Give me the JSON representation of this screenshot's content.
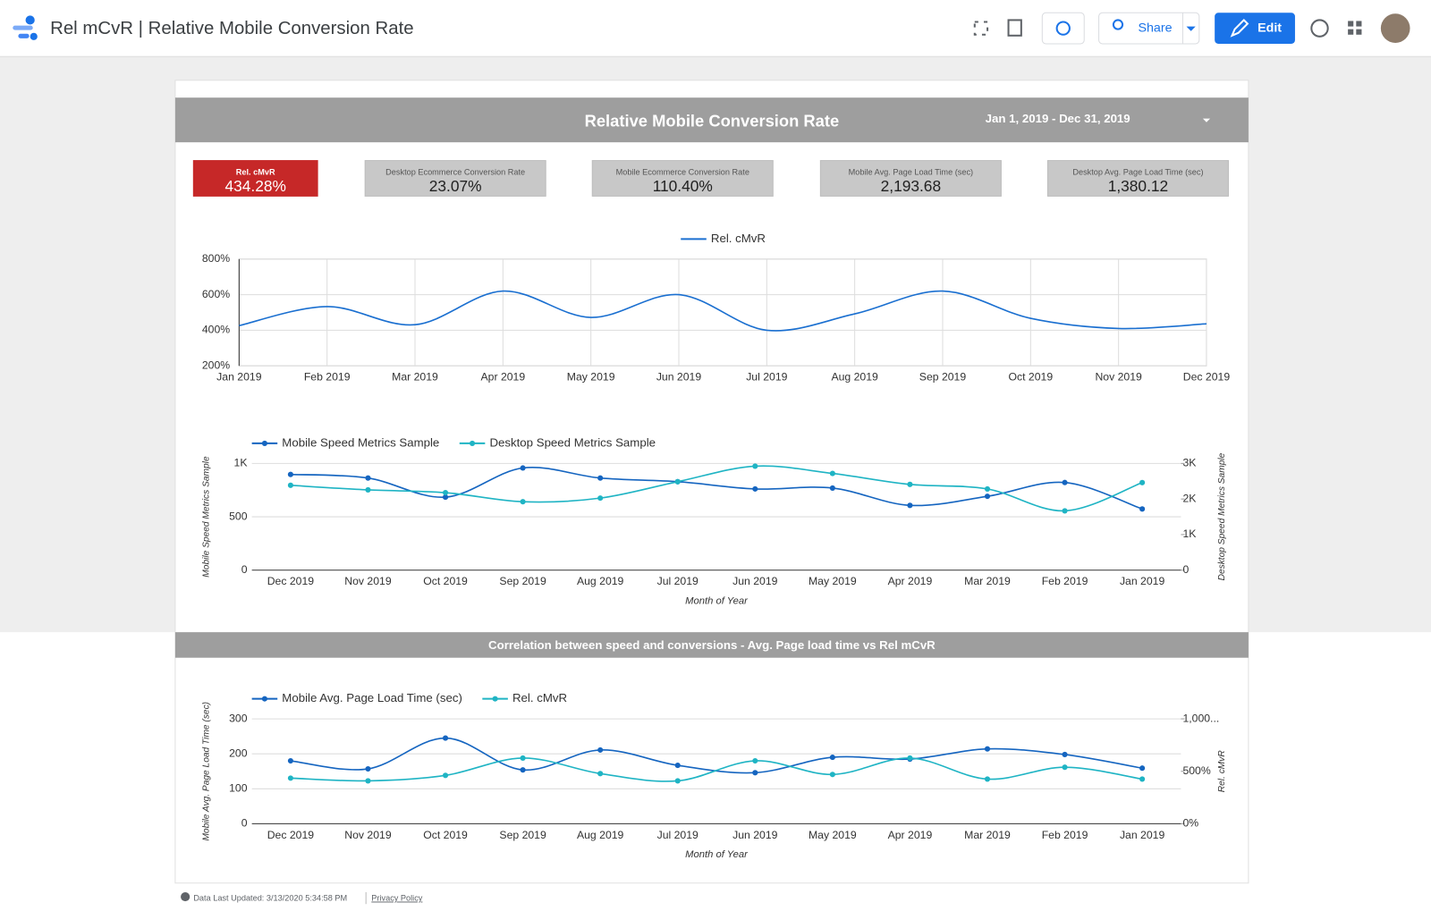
{
  "header": {
    "title": "Rel mCvR | Relative Mobile Conversion Rate",
    "share": "Share",
    "edit": "Edit"
  },
  "report": {
    "title": "Relative Mobile Conversion Rate",
    "date_range": "Jan 1, 2019 - Dec 31, 2019"
  },
  "scorecards": [
    {
      "label": "Rel. cMvR",
      "value": "434.28%"
    },
    {
      "label": "Desktop Ecommerce Conversion Rate",
      "value": "23.07%"
    },
    {
      "label": "Mobile Ecommerce Conversion Rate",
      "value": "110.40%"
    },
    {
      "label": "Mobile Avg. Page Load Time (sec)",
      "value": "2,193.68"
    },
    {
      "label": "Desktop Avg. Page Load Time (sec)",
      "value": "1,380.12"
    }
  ],
  "section_title": "Correlation between speed and conversions - Avg. Page load time vs Rel mCvR",
  "footer": {
    "updated": "Data Last Updated: 3/13/2020 5:34:58 PM",
    "privacy": "Privacy Policy"
  },
  "chart_data": [
    {
      "type": "line",
      "markers": false,
      "grid": true,
      "xgrid": true,
      "categories": [
        "Jan 2019",
        "Feb 2019",
        "Mar 2019",
        "Apr 2019",
        "May 2019",
        "Jun 2019",
        "Jul 2019",
        "Aug 2019",
        "Sep 2019",
        "Oct 2019",
        "Nov 2019",
        "Dec 2019"
      ],
      "series": [
        {
          "name": "Rel. cMvR",
          "color": "#1a6fd0",
          "values": [
            426,
            533,
            431,
            620,
            472,
            600,
            400,
            492,
            620,
            467,
            410,
            436
          ]
        }
      ],
      "ylim": [
        200,
        800
      ],
      "yticks": [
        {
          "value": 200,
          "label": "200%"
        },
        {
          "value": 400,
          "label": "400%"
        },
        {
          "value": 600,
          "label": "600%"
        },
        {
          "value": 800,
          "label": "800%"
        }
      ]
    },
    {
      "type": "line",
      "markers": true,
      "grid": true,
      "x_label": "Month of Year",
      "y_label": "Mobile Speed Metrics Sample",
      "y2_label": "Desktop Speed Metrics Sample",
      "categories": [
        "Dec 2019",
        "Nov 2019",
        "Oct 2019",
        "Sep 2019",
        "Aug 2019",
        "Jul 2019",
        "Jun 2019",
        "May 2019",
        "Apr 2019",
        "Mar 2019",
        "Feb 2019",
        "Jan 2019"
      ],
      "series": [
        {
          "name": "Mobile Speed Metrics Sample",
          "color": "#1565c0",
          "values": [
            897,
            863,
            684,
            957,
            863,
            829,
            761,
            769,
            607,
            692,
            821,
            573
          ]
        },
        {
          "name": "Desktop Speed Metrics Sample",
          "color": "#1fb4c4",
          "axis": "y2",
          "values": [
            2385,
            2256,
            2179,
            1923,
            2026,
            2487,
            2923,
            2718,
            2410,
            2282,
            1667,
            2462
          ]
        }
      ],
      "ylim": [
        0,
        1000
      ],
      "yticks": [
        0,
        500,
        {
          "value": 1000,
          "label": "1K"
        }
      ],
      "y2lim": [
        0,
        3000
      ],
      "y2ticks": [
        0,
        {
          "value": 1000,
          "label": "1K"
        },
        {
          "value": 2000,
          "label": "2K"
        },
        {
          "value": 3000,
          "label": "3K"
        }
      ]
    },
    {
      "type": "line",
      "markers": true,
      "grid": true,
      "x_label": "Month of Year",
      "y_label": "Mobile Avg. Page Load Time (sec)",
      "y2_label": "Rel. cMvR",
      "categories": [
        "Dec 2019",
        "Nov 2019",
        "Oct 2019",
        "Sep 2019",
        "Aug 2019",
        "Jul 2019",
        "Jun 2019",
        "May 2019",
        "Apr 2019",
        "Mar 2019",
        "Feb 2019",
        "Jan 2019"
      ],
      "series": [
        {
          "name": "Mobile Avg. Page Load Time (sec)",
          "color": "#1565c0",
          "values": [
            180,
            157,
            245,
            154,
            211,
            167,
            146,
            190,
            185,
            214,
            198,
            159
          ]
        },
        {
          "name": "Rel. cMvR",
          "color": "#1fb4c4",
          "axis": "y2",
          "values": [
            435,
            409,
            461,
            626,
            478,
            409,
            600,
            470,
            626,
            426,
            539,
            426
          ]
        }
      ],
      "ylim": [
        0,
        300
      ],
      "yticks": [
        0,
        100,
        200,
        300
      ],
      "y2lim": [
        0,
        1000
      ],
      "y2ticks": [
        {
          "value": 0,
          "label": "0%"
        },
        {
          "value": 500,
          "label": "500%"
        },
        {
          "value": 1000,
          "label": "1,000..."
        }
      ]
    }
  ]
}
